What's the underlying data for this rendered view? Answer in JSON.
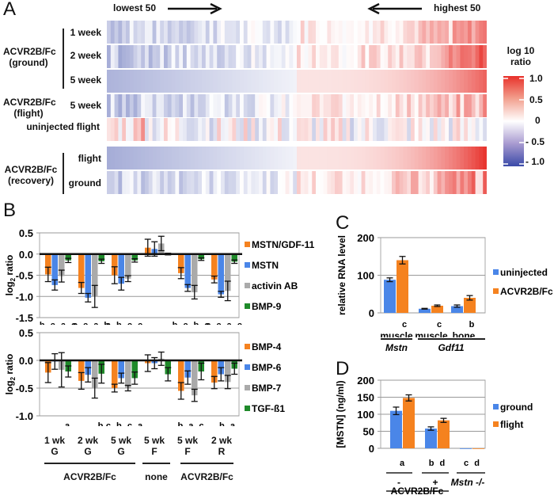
{
  "panels": {
    "A": {
      "letter": "A",
      "lowest_label": "lowest 50",
      "highest_label": "highest 50",
      "groups": [
        {
          "label_line1": "ACVR2B/Fc",
          "label_line2": "(ground)"
        },
        {
          "label_line1": "ACVR2B/Fc",
          "label_line2": "(flight)"
        },
        {
          "label_line1": "ACVR2B/Fc",
          "label_line2": "(recovery)"
        }
      ],
      "row_labels": [
        "1 week",
        "2 week",
        "5 week",
        "5 week",
        "uninjected flight",
        "flight",
        "ground"
      ],
      "colorbar": {
        "title_line1": "log 10",
        "title_line2": "ratio",
        "ticks": [
          "1.0",
          "0.5",
          "0",
          "- 0.5",
          "- 1.0"
        ],
        "range": [
          -1.0,
          1.0
        ],
        "colors": {
          "low": "#3b4ba8",
          "mid": "#ffffff",
          "high": "#e8382a"
        }
      }
    },
    "B": {
      "letter": "B",
      "group_labels": [
        {
          "line1": "1 wk",
          "line2": "G"
        },
        {
          "line1": "2 wk",
          "line2": "G"
        },
        {
          "line1": "5 wk",
          "line2": "G"
        },
        {
          "line1": "5 wk",
          "line2": "F"
        },
        {
          "line1": "5 wk",
          "line2": "F"
        },
        {
          "line1": "2 wk",
          "line2": "R"
        }
      ],
      "treatment_labels": [
        "ACVR2B/Fc",
        "none",
        "ACVR2B/Fc"
      ]
    },
    "C": {
      "letter": "C"
    },
    "D": {
      "letter": "D"
    }
  },
  "chart_data": [
    {
      "id": "A-heatmap",
      "type": "heatmap",
      "title": "",
      "x_description": "genes ranked from lowest 50 to highest 50",
      "rows": [
        "ACVR2B/Fc (ground) 1 week",
        "ACVR2B/Fc (ground) 2 week",
        "ACVR2B/Fc (ground) 5 week",
        "ACVR2B/Fc (flight) 5 week",
        "uninjected flight",
        "ACVR2B/Fc (recovery) flight",
        "ACVR2B/Fc (recovery) ground"
      ],
      "n_columns": 100,
      "value_range": [
        -1.0,
        1.0
      ],
      "colorbar_label": "log 10 ratio",
      "row_summary": [
        {
          "lowest_end": -0.3,
          "highest_end": 0.6
        },
        {
          "lowest_end": -0.4,
          "highest_end": 0.9
        },
        {
          "lowest_end": -0.45,
          "highest_end": 0.7
        },
        {
          "lowest_end": -0.35,
          "highest_end": 0.5
        },
        {
          "lowest_end": 0.3,
          "highest_end": 0.2
        },
        {
          "lowest_end": -0.5,
          "highest_end": 0.95
        },
        {
          "lowest_end": -0.3,
          "highest_end": 0.8
        }
      ]
    },
    {
      "id": "B-top",
      "type": "bar",
      "ylabel": "log2 ratio",
      "ylim": [
        -1.5,
        0.5
      ],
      "yticks": [
        "0.5",
        "0.0",
        "-0.5",
        "-1.0",
        "-1.5"
      ],
      "grid": true,
      "categories": [
        "1 wk G",
        "2 wk G",
        "5 wk G",
        "5 wk F",
        "5 wk F",
        "2 wk R"
      ],
      "series": [
        {
          "name": "MSTN/GDF-11",
          "color": "#f5821f",
          "values": [
            -0.48,
            -0.8,
            -0.5,
            0.15,
            -0.45,
            -0.6
          ],
          "errors": [
            0.17,
            0.13,
            0.2,
            0.2,
            0.13,
            0.08
          ]
        },
        {
          "name": "MSTN",
          "color": "#4a86e8",
          "values": [
            -0.73,
            -1.03,
            -0.7,
            0.12,
            -0.8,
            -0.95
          ],
          "errors": [
            0.12,
            0.1,
            0.15,
            0.17,
            0.08,
            0.07
          ]
        },
        {
          "name": "activin AB",
          "color": "#aaaaaa",
          "values": [
            -0.52,
            -1.0,
            -0.58,
            0.25,
            -0.9,
            -0.87
          ],
          "errors": [
            0.14,
            0.26,
            0.07,
            0.17,
            0.16,
            0.23
          ]
        },
        {
          "name": "BMP-9",
          "color": "#1f8a2a",
          "values": [
            -0.15,
            -0.17,
            -0.15,
            0.0,
            -0.12,
            -0.18
          ],
          "errors": [
            0.05,
            0.05,
            0.04,
            0.02,
            0.03,
            0.04
          ]
        }
      ],
      "significance_letters": [
        "b c a c",
        "c c a b",
        "a b c c",
        "",
        "b c b c",
        "c c a c"
      ]
    },
    {
      "id": "B-bottom",
      "type": "bar",
      "ylabel": "log2 ratio",
      "ylim": [
        -1.0,
        0.5
      ],
      "yticks": [
        "0.5",
        "0.0",
        "-0.5",
        "-1.0"
      ],
      "grid": true,
      "categories": [
        "1 wk G",
        "2 wk G",
        "5 wk G",
        "5 wk F",
        "5 wk F",
        "2 wk R"
      ],
      "series": [
        {
          "name": "BMP-4",
          "color": "#f5821f",
          "values": [
            -0.22,
            -0.37,
            -0.5,
            -0.05,
            -0.55,
            -0.4
          ],
          "errors": [
            0.18,
            0.15,
            0.07,
            0.15,
            0.15,
            0.11
          ]
        },
        {
          "name": "BMP-6",
          "color": "#4a86e8",
          "values": [
            -0.02,
            -0.26,
            -0.32,
            -0.05,
            -0.31,
            -0.25
          ],
          "errors": [
            0.14,
            0.13,
            0.09,
            0.1,
            0.12,
            0.12
          ]
        },
        {
          "name": "BMP-7",
          "color": "#aaaaaa",
          "values": [
            -0.17,
            -0.5,
            -0.5,
            0.03,
            -0.63,
            -0.39
          ],
          "errors": [
            0.31,
            0.18,
            0.05,
            0.12,
            0.11,
            0.12
          ]
        },
        {
          "name": "TGF-ß1",
          "color": "#1f8a2a",
          "values": [
            -0.2,
            -0.24,
            -0.32,
            -0.25,
            -0.2,
            -0.15
          ],
          "errors": [
            0.1,
            0.17,
            0.11,
            0.12,
            0.15,
            0.1
          ]
        }
      ],
      "significance_letters": [
        "a",
        "b",
        "c b c a",
        "",
        "b a c",
        "b a"
      ]
    },
    {
      "id": "C",
      "type": "bar",
      "ylabel": "relative RNA level",
      "ylim": [
        0,
        200
      ],
      "yticks": [
        "200",
        "100",
        "0"
      ],
      "grid": true,
      "categories": [
        "muscle",
        "muscle",
        "bone"
      ],
      "category_groups": [
        {
          "label": "Mstn",
          "span": 1
        },
        {
          "label": "Gdf11",
          "span": 2
        }
      ],
      "series": [
        {
          "name": "uninjected",
          "color": "#4a86e8",
          "values": [
            88,
            11,
            18
          ],
          "errors": [
            5,
            1,
            3
          ]
        },
        {
          "name": "ACVR2B/Fc",
          "color": "#f5821f",
          "values": [
            140,
            19,
            40
          ],
          "errors": [
            10,
            2,
            6
          ]
        }
      ],
      "significance_letters": [
        "c",
        "c",
        "b"
      ]
    },
    {
      "id": "D",
      "type": "bar",
      "ylabel": "[MSTN] (ng/ml)",
      "ylim": [
        0,
        200
      ],
      "yticks": [
        "200",
        "150",
        "100",
        "50",
        "0"
      ],
      "grid": true,
      "categories": [
        "-",
        "+",
        "Mstn -/-"
      ],
      "category_group_label": "ACVR2B/Fc",
      "series": [
        {
          "name": "ground",
          "color": "#4a86e8",
          "values": [
            110,
            58,
            0
          ],
          "errors": [
            11,
            5,
            0
          ]
        },
        {
          "name": "flight",
          "color": "#f5821f",
          "values": [
            148,
            82,
            0
          ],
          "errors": [
            9,
            6,
            0
          ]
        }
      ],
      "significance_letters": [
        " a",
        "b d",
        "c d"
      ]
    }
  ]
}
